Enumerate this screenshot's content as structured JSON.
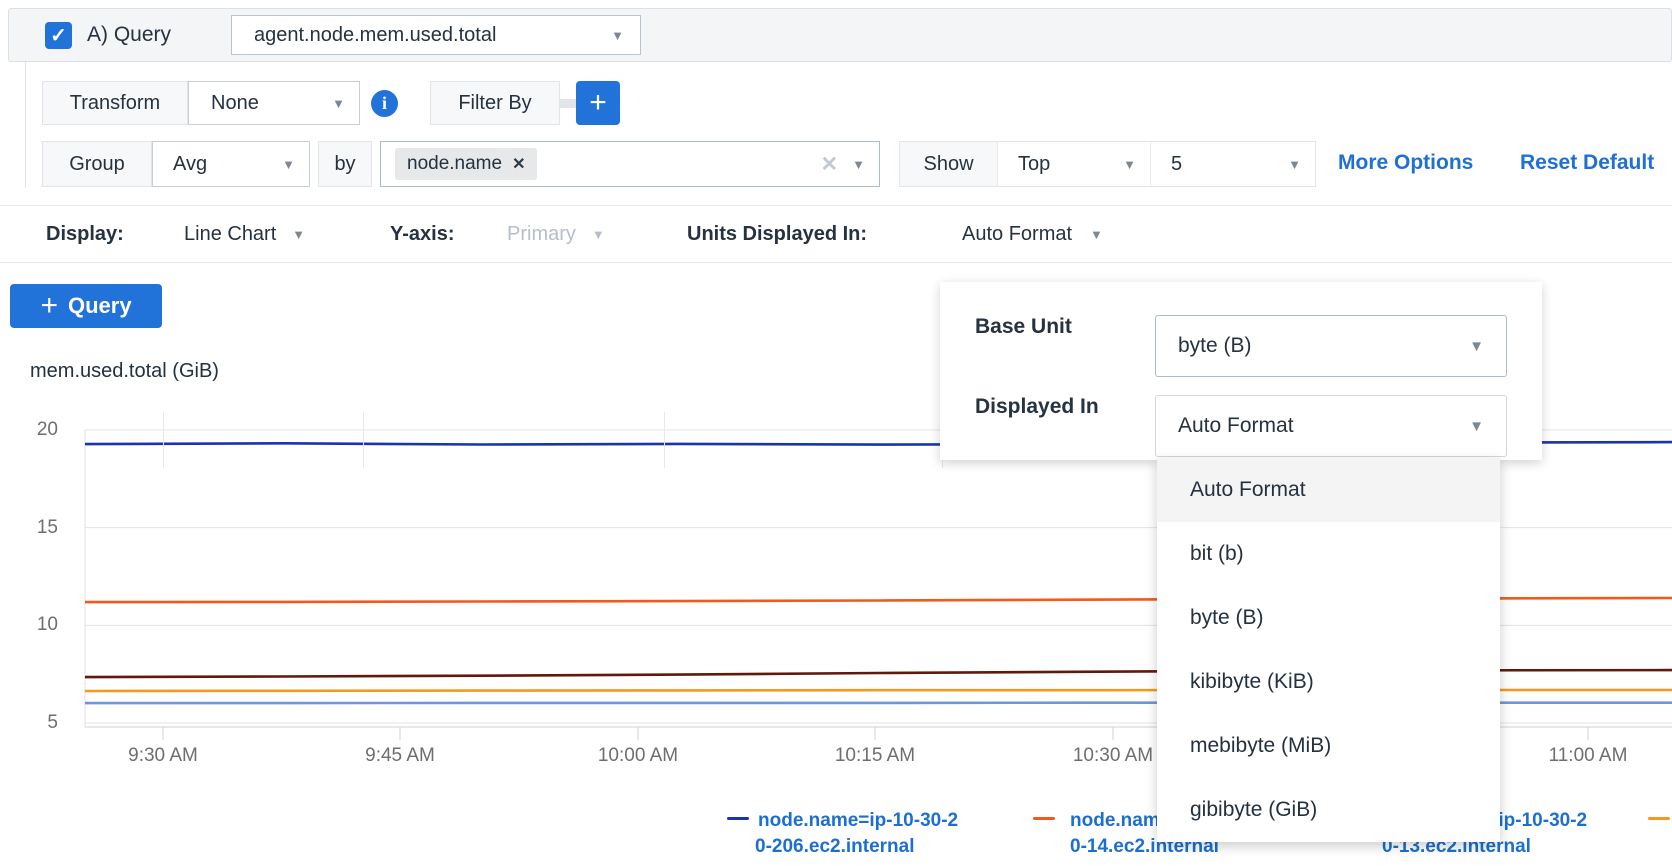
{
  "colors": {
    "accent_blue": "#2273d9",
    "link_blue": "#1e6fd6",
    "legend_text": "#1c6fd2",
    "series_navy": "#1c33b0",
    "series_orange_red": "#f4581d",
    "series_maroon": "#5f1a0c",
    "series_amber": "#f6981e",
    "series_light_blue": "#6f97d8"
  },
  "query_header": {
    "checkbox_checked": true,
    "label": "A) Query",
    "metric_select_value": "agent.node.mem.used.total"
  },
  "transform_row": {
    "transform_label": "Transform",
    "transform_value": "None",
    "filter_by_label": "Filter By"
  },
  "group_row": {
    "group_label": "Group",
    "aggregation_value": "Avg",
    "by_label": "by",
    "group_by_tag": "node.name",
    "show_label": "Show",
    "show_mode_value": "Top",
    "show_count_value": "5",
    "more_options_link": "More Options",
    "reset_default_link": "Reset Default"
  },
  "display_row": {
    "display_label": "Display:",
    "display_value": "Line Chart",
    "yaxis_label": "Y-axis:",
    "yaxis_value": "Primary",
    "units_label": "Units Displayed In:",
    "units_value": "Auto Format"
  },
  "add_query_button": {
    "label": "Query"
  },
  "units_popup": {
    "base_unit_label": "Base Unit",
    "base_unit_value": "byte (B)",
    "displayed_in_label": "Displayed In",
    "displayed_in_value": "Auto Format",
    "options": [
      "Auto Format",
      "bit (b)",
      "byte (B)",
      "kibibyte (KiB)",
      "mebibyte (MiB)",
      "gibibyte (GiB)"
    ],
    "highlighted_option": "Auto Format"
  },
  "chart_data": {
    "type": "line",
    "title": "mem.used.total (GiB)",
    "unit": "GiB",
    "y_ticks": [
      20,
      15,
      10,
      5
    ],
    "ylim": [
      4.8,
      21.3
    ],
    "grid": true,
    "x_tick_labels": [
      "9:30 AM",
      "9:45 AM",
      "10:00 AM",
      "10:15 AM",
      "10:30 AM",
      "11:00 AM"
    ],
    "legend_position": "bottom",
    "series": [
      {
        "name": "node.name=ip-10-30-20-206.ec2.internal",
        "color": "#1c33b0",
        "values": [
          19.28,
          19.32,
          19.26,
          19.29,
          19.25,
          19.28,
          19.32,
          19.36,
          19.38
        ]
      },
      {
        "name": "node.name=ip-10-30-20-14.ec2.internal",
        "color": "#f4581d",
        "values": [
          11.19,
          11.2,
          11.22,
          11.24,
          11.27,
          11.31,
          11.35,
          11.38,
          11.4
        ]
      },
      {
        "name": "node.name=ip-10-30-20-13.ec2.internal",
        "color": "#5f1a0c",
        "values": [
          7.35,
          7.38,
          7.42,
          7.48,
          7.56,
          7.62,
          7.67,
          7.7,
          7.71
        ]
      },
      {
        "name": "",
        "color": "#f6981e",
        "values": [
          6.64,
          6.65,
          6.66,
          6.67,
          6.68,
          6.68,
          6.69,
          6.69,
          6.69
        ]
      },
      {
        "name": "",
        "color": "#6f97d8",
        "values": [
          6.02,
          6.02,
          6.03,
          6.03,
          6.03,
          6.04,
          6.04,
          6.04,
          6.04
        ]
      }
    ]
  },
  "legend": {
    "entries": [
      {
        "line1": "node.name=ip-10-30-2",
        "line2": "0-206.ec2.internal",
        "color": "#1c33b0"
      },
      {
        "line1": "node.name=ip-10-30-2",
        "line2": "0-14.ec2.internal",
        "color": "#f4581d"
      },
      {
        "line1": "node.name=ip-10-30-2",
        "line2": "0-13.ec2.internal",
        "color": "#5f1a0c"
      },
      {
        "line1": "",
        "line2": "",
        "color": "#f6981e"
      }
    ]
  }
}
